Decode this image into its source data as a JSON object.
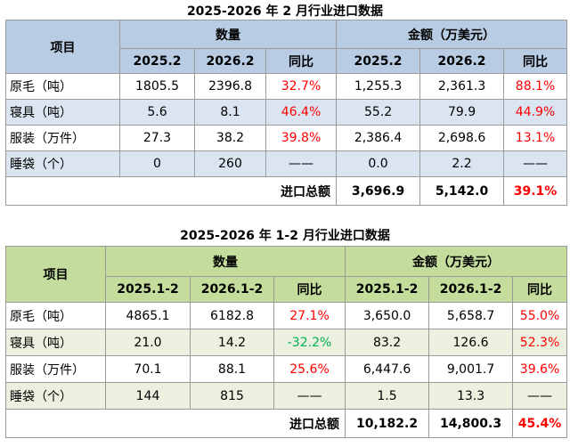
{
  "table1": {
    "title": "2025-2026 年 2 月行业进口数据",
    "item_header": "项目",
    "qty_header": "数量",
    "amt_header": "金额（万美元）",
    "sub_headers": [
      "2025.2",
      "2026.2",
      "同比",
      "2025.2",
      "2026.2",
      "同比"
    ],
    "rows": [
      {
        "label": "原毛（吨）",
        "q1": "1805.5",
        "q2": "2396.8",
        "q_yoy": "32.7%",
        "a1": "1,255.3",
        "a2": "2,361.3",
        "a_yoy": "88.1%"
      },
      {
        "label": "寝具（吨）",
        "q1": "5.6",
        "q2": "8.1",
        "q_yoy": "46.4%",
        "a1": "55.2",
        "a2": "79.9",
        "a_yoy": "44.9%"
      },
      {
        "label": "服装（万件）",
        "q1": "27.3",
        "q2": "38.2",
        "q_yoy": "39.8%",
        "a1": "2,386.4",
        "a2": "2,698.6",
        "a_yoy": "13.1%"
      },
      {
        "label": "睡袋（个）",
        "q1": "0",
        "q2": "260",
        "q_yoy": "——",
        "a1": "0.0",
        "a2": "2.2",
        "a_yoy": "——"
      }
    ],
    "total": {
      "label": "进口总额",
      "a1": "3,696.9",
      "a2": "5,142.0",
      "yoy": "39.1%"
    }
  },
  "table2": {
    "title": "2025-2026 年 1-2 月行业进口数据",
    "item_header": "项目",
    "qty_header": "数量",
    "amt_header": "金额（万美元）",
    "sub_headers": [
      "2025.1-2",
      "2026.1-2",
      "同比",
      "2025.1-2",
      "2026.1-2",
      "同比"
    ],
    "rows": [
      {
        "label": "原毛（吨）",
        "q1": "4865.1",
        "q2": "6182.8",
        "q_yoy": "27.1%",
        "a1": "3,650.0",
        "a2": "5,658.7",
        "a_yoy": "55.0%"
      },
      {
        "label": "寝具（吨）",
        "q1": "21.0",
        "q2": "14.2",
        "q_yoy": "-32.2%",
        "a1": "83.2",
        "a2": "126.6",
        "a_yoy": "52.3%"
      },
      {
        "label": "服装（万件）",
        "q1": "70.1",
        "q2": "88.1",
        "q_yoy": "25.6%",
        "a1": "6,447.6",
        "a2": "9,001.7",
        "a_yoy": "39.6%"
      },
      {
        "label": "睡袋（个）",
        "q1": "144",
        "q2": "815",
        "q_yoy": "——",
        "a1": "1.5",
        "a2": "13.3",
        "a_yoy": "——"
      }
    ],
    "total": {
      "label": "进口总额",
      "a1": "10,182.2",
      "a2": "14,800.3",
      "yoy": "45.4%"
    }
  },
  "colors": {
    "positive": "#ff0000",
    "negative": "#00b050",
    "table1_header": "#b8cce4",
    "table1_band": "#dbe5f1",
    "table2_header": "#c4dd9c",
    "table2_band": "#ebf1de"
  }
}
